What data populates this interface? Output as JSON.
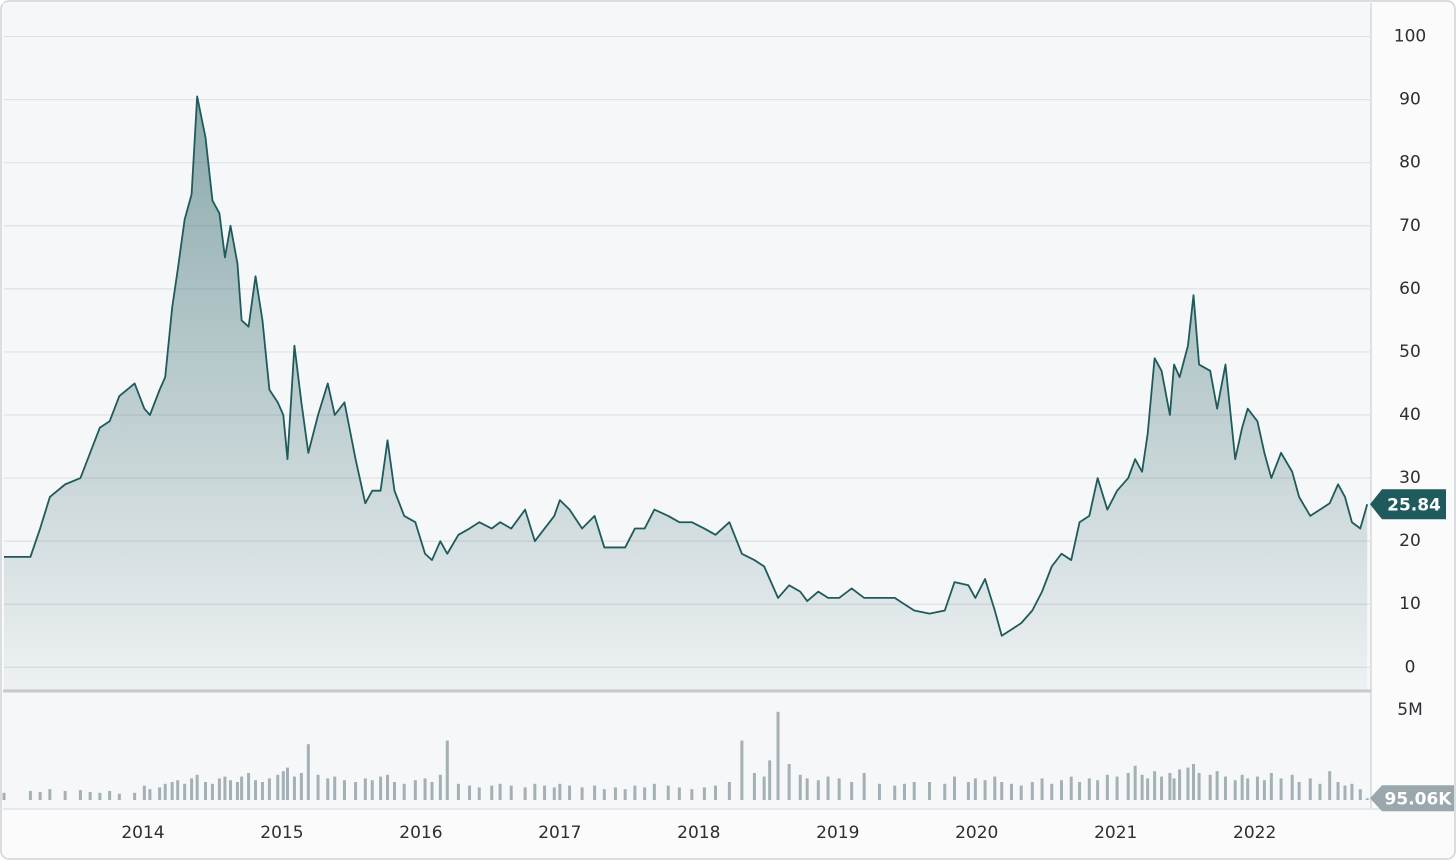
{
  "chart_data": [
    {
      "type": "area",
      "color": "#1f5a5c",
      "grid": true,
      "xlim": [
        2013.0,
        2022.83
      ],
      "ylim": [
        -3.6,
        105
      ],
      "yticks": [
        0,
        10,
        20,
        30,
        40,
        50,
        60,
        70,
        80,
        90,
        100
      ],
      "x": [
        2013.0,
        2013.19,
        2013.26,
        2013.33,
        2013.44,
        2013.55,
        2013.62,
        2013.69,
        2013.76,
        2013.83,
        2013.94,
        2014.01,
        2014.05,
        2014.12,
        2014.16,
        2014.21,
        2014.25,
        2014.3,
        2014.35,
        2014.39,
        2014.45,
        2014.5,
        2014.55,
        2014.59,
        2014.63,
        2014.68,
        2014.71,
        2014.76,
        2014.81,
        2014.86,
        2014.91,
        2014.97,
        2015.01,
        2015.04,
        2015.09,
        2015.14,
        2015.19,
        2015.26,
        2015.33,
        2015.38,
        2015.45,
        2015.53,
        2015.6,
        2015.65,
        2015.71,
        2015.76,
        2015.81,
        2015.88,
        2015.96,
        2016.03,
        2016.08,
        2016.14,
        2016.19,
        2016.27,
        2016.35,
        2016.42,
        2016.51,
        2016.57,
        2016.65,
        2016.75,
        2016.82,
        2016.89,
        2016.96,
        2017.0,
        2017.07,
        2017.16,
        2017.25,
        2017.32,
        2017.4,
        2017.47,
        2017.54,
        2017.61,
        2017.68,
        2017.78,
        2017.86,
        2017.95,
        2018.04,
        2018.12,
        2018.22,
        2018.31,
        2018.4,
        2018.47,
        2018.51,
        2018.57,
        2018.65,
        2018.73,
        2018.78,
        2018.86,
        2018.93,
        2019.01,
        2019.1,
        2019.19,
        2019.3,
        2019.41,
        2019.48,
        2019.55,
        2019.66,
        2019.77,
        2019.84,
        2019.94,
        2019.99,
        2020.06,
        2020.13,
        2020.18,
        2020.25,
        2020.32,
        2020.4,
        2020.47,
        2020.54,
        2020.61,
        2020.68,
        2020.74,
        2020.81,
        2020.87,
        2020.94,
        2021.01,
        2021.09,
        2021.14,
        2021.19,
        2021.23,
        2021.28,
        2021.33,
        2021.39,
        2021.42,
        2021.46,
        2021.52,
        2021.56,
        2021.6,
        2021.68,
        2021.73,
        2021.79,
        2021.86,
        2021.91,
        2021.95,
        2022.02,
        2022.07,
        2022.12,
        2022.19,
        2022.27,
        2022.32,
        2022.4,
        2022.47,
        2022.54,
        2022.6,
        2022.65,
        2022.7,
        2022.76,
        2022.81
      ],
      "values": [
        17.5,
        17.5,
        22,
        27,
        29,
        30,
        34,
        38,
        39,
        43,
        45,
        41,
        40,
        44,
        46,
        57,
        63,
        71,
        75,
        90.5,
        84,
        74,
        72,
        65,
        70,
        64,
        55,
        54,
        62,
        55,
        44,
        42,
        40,
        33,
        51,
        42,
        34,
        40,
        45,
        40,
        42,
        33,
        26,
        28,
        28,
        36,
        28,
        24,
        23,
        18,
        17,
        20,
        18,
        21,
        22,
        23,
        22,
        23,
        22,
        25,
        20,
        22,
        24,
        26.5,
        25,
        22,
        24,
        19,
        19,
        19,
        22,
        22,
        25,
        24,
        23,
        23,
        22,
        21,
        23,
        18,
        17,
        16,
        14,
        11,
        13,
        12,
        10.5,
        12,
        11,
        11,
        12.5,
        11,
        11,
        11,
        10,
        9,
        8.5,
        9,
        13.5,
        13,
        11,
        14,
        9,
        5,
        6,
        7,
        9,
        12,
        16,
        18,
        17,
        23,
        24,
        30,
        25,
        28,
        30,
        33,
        31,
        37,
        49,
        47,
        40,
        48,
        46,
        51,
        59,
        48,
        47,
        41,
        48,
        33,
        38,
        41,
        39,
        34,
        30,
        34,
        31,
        27,
        24,
        25,
        26,
        29,
        27,
        23,
        22,
        25.84
      ]
    },
    {
      "type": "bar",
      "color": "#a3b0b5",
      "grid": false,
      "xlim": [
        2013.0,
        2022.83
      ],
      "ylim": [
        0,
        6000000
      ],
      "yticks": [
        {
          "value": 5000000,
          "label": "5M"
        }
      ],
      "xticks": [
        2014,
        2015,
        2016,
        2017,
        2018,
        2019,
        2020,
        2021,
        2022
      ],
      "last_value": {
        "value": 95060,
        "label": "95.06K"
      },
      "x": [
        2013.0,
        2013.19,
        2013.26,
        2013.33,
        2013.44,
        2013.55,
        2013.62,
        2013.69,
        2013.76,
        2013.83,
        2013.94,
        2014.01,
        2014.05,
        2014.12,
        2014.16,
        2014.21,
        2014.25,
        2014.3,
        2014.35,
        2014.39,
        2014.45,
        2014.5,
        2014.55,
        2014.59,
        2014.63,
        2014.68,
        2014.71,
        2014.76,
        2014.81,
        2014.86,
        2014.91,
        2014.97,
        2015.01,
        2015.04,
        2015.09,
        2015.14,
        2015.19,
        2015.26,
        2015.33,
        2015.38,
        2015.45,
        2015.53,
        2015.6,
        2015.65,
        2015.71,
        2015.76,
        2015.81,
        2015.88,
        2015.96,
        2016.03,
        2016.08,
        2016.14,
        2016.19,
        2016.27,
        2016.35,
        2016.42,
        2016.51,
        2016.57,
        2016.65,
        2016.75,
        2016.82,
        2016.89,
        2016.96,
        2017.0,
        2017.07,
        2017.16,
        2017.25,
        2017.32,
        2017.4,
        2017.47,
        2017.54,
        2017.61,
        2017.68,
        2017.78,
        2017.86,
        2017.95,
        2018.04,
        2018.12,
        2018.22,
        2018.31,
        2018.4,
        2018.47,
        2018.51,
        2018.57,
        2018.65,
        2018.73,
        2018.78,
        2018.86,
        2018.93,
        2019.01,
        2019.1,
        2019.19,
        2019.3,
        2019.41,
        2019.48,
        2019.55,
        2019.66,
        2019.77,
        2019.84,
        2019.94,
        2019.99,
        2020.06,
        2020.13,
        2020.18,
        2020.25,
        2020.32,
        2020.4,
        2020.47,
        2020.54,
        2020.61,
        2020.68,
        2020.74,
        2020.81,
        2020.87,
        2020.94,
        2021.01,
        2021.09,
        2021.14,
        2021.19,
        2021.23,
        2021.28,
        2021.33,
        2021.39,
        2021.42,
        2021.46,
        2021.52,
        2021.56,
        2021.6,
        2021.68,
        2021.73,
        2021.79,
        2021.86,
        2021.91,
        2021.95,
        2022.02,
        2022.07,
        2022.12,
        2022.19,
        2022.27,
        2022.32,
        2022.4,
        2022.47,
        2022.54,
        2022.6,
        2022.65,
        2022.7,
        2022.76,
        2022.81
      ],
      "values": [
        400000,
        500000,
        450000,
        600000,
        500000,
        550000,
        450000,
        400000,
        500000,
        350000,
        400000,
        800000,
        600000,
        700000,
        900000,
        1000000,
        1100000,
        900000,
        1200000,
        1400000,
        1000000,
        900000,
        1200000,
        1300000,
        1100000,
        1000000,
        1300000,
        1500000,
        1100000,
        1000000,
        1200000,
        1400000,
        1600000,
        1800000,
        1300000,
        1500000,
        3100000,
        1400000,
        1200000,
        1300000,
        1100000,
        1000000,
        1200000,
        1100000,
        1300000,
        1400000,
        1000000,
        900000,
        1100000,
        1200000,
        1000000,
        1400000,
        3300000,
        900000,
        800000,
        700000,
        800000,
        900000,
        800000,
        700000,
        900000,
        800000,
        700000,
        900000,
        800000,
        700000,
        800000,
        600000,
        700000,
        600000,
        800000,
        700000,
        900000,
        800000,
        700000,
        600000,
        700000,
        800000,
        1000000,
        3300000,
        1500000,
        1300000,
        2200000,
        4900000,
        2000000,
        1400000,
        1200000,
        1100000,
        1300000,
        1200000,
        1000000,
        1500000,
        900000,
        800000,
        900000,
        1000000,
        1000000,
        900000,
        1300000,
        1000000,
        1200000,
        1100000,
        1300000,
        1000000,
        900000,
        800000,
        1000000,
        1200000,
        900000,
        1100000,
        1300000,
        1000000,
        1200000,
        1100000,
        1400000,
        1300000,
        1500000,
        1900000,
        1400000,
        1200000,
        1600000,
        1300000,
        1500000,
        1200000,
        1700000,
        1800000,
        2000000,
        1500000,
        1400000,
        1600000,
        1300000,
        1100000,
        1400000,
        1200000,
        1300000,
        1100000,
        1500000,
        1200000,
        1400000,
        1000000,
        1200000,
        900000,
        1600000,
        1000000,
        800000,
        900000,
        600000,
        95060
      ]
    }
  ]
}
